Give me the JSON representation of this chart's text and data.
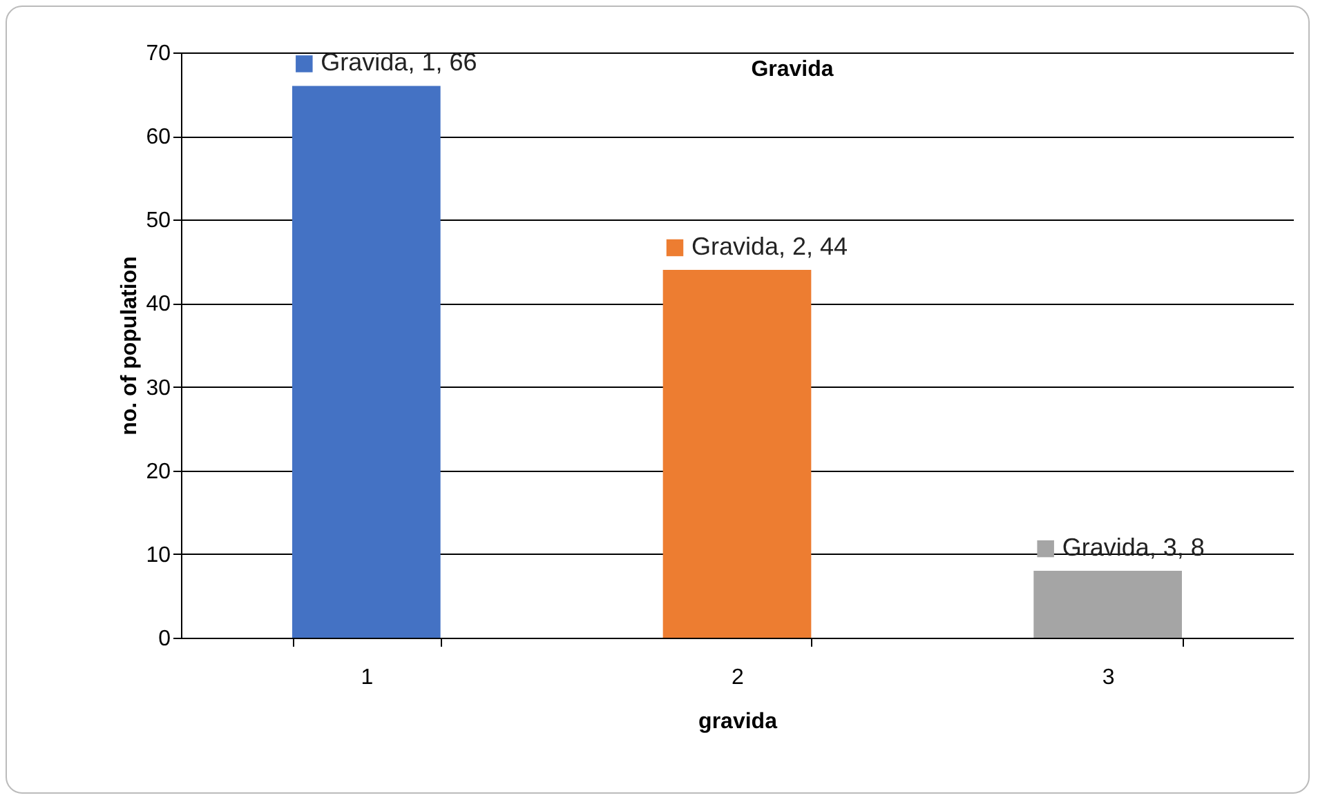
{
  "chart_data": {
    "type": "bar",
    "title": "Gravida",
    "xlabel": "gravida",
    "ylabel": "no. of population",
    "categories": [
      "1",
      "2",
      "3"
    ],
    "values": [
      66,
      44,
      8
    ],
    "colors": [
      "#4472c4",
      "#ed7d31",
      "#a5a5a5"
    ],
    "value_labels": [
      "Gravida, 1, 66",
      "Gravida, 2, 44",
      "Gravida, 3, 8"
    ],
    "ylim": [
      0,
      70
    ],
    "yticks": [
      0,
      10,
      20,
      30,
      40,
      50,
      60,
      70
    ],
    "grid": "y"
  }
}
